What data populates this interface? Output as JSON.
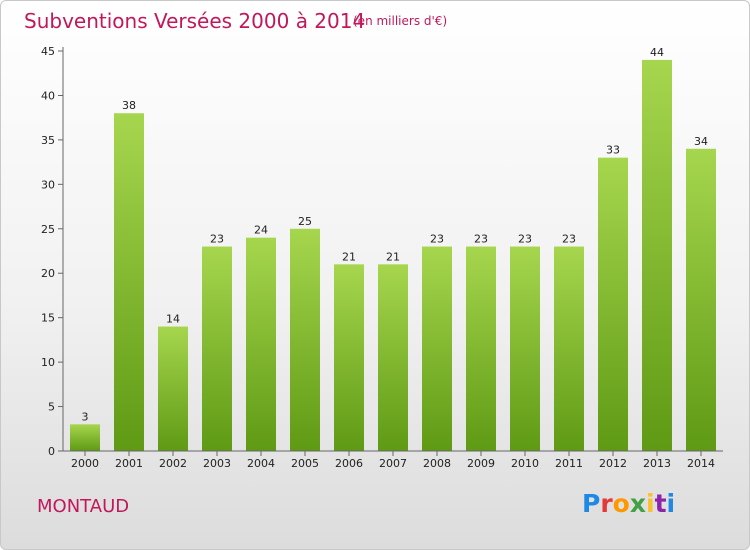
{
  "header": {
    "title": "Subventions Versées 2000 à 2014",
    "subtitle": "(en milliers d'€)"
  },
  "footer": {
    "commune": "MONTAUD",
    "logo": {
      "text": "Proxiti",
      "letter_colors": [
        "#1e88e5",
        "#e53935",
        "#ff9800",
        "#43a047",
        "#fbc02d",
        "#8e24aa",
        "#1e88e5"
      ]
    }
  },
  "chart_data": {
    "type": "bar",
    "title": "Subventions Versées 2000 à 2014",
    "subtitle": "(en milliers d'€)",
    "xlabel": "",
    "ylabel": "",
    "categories": [
      "2000",
      "2001",
      "2002",
      "2003",
      "2004",
      "2005",
      "2006",
      "2007",
      "2008",
      "2009",
      "2010",
      "2011",
      "2012",
      "2013",
      "2014"
    ],
    "values": [
      3,
      38,
      14,
      23,
      24,
      25,
      21,
      21,
      23,
      23,
      23,
      23,
      33,
      44,
      34
    ],
    "ylim": [
      0,
      45
    ],
    "yticks": [
      0,
      5,
      10,
      15,
      20,
      25,
      30,
      35,
      40,
      45
    ],
    "grid": false,
    "legend": "none",
    "colors": {
      "bar_top": "#a6d64e",
      "bar_bottom": "#5f9a14",
      "axis": "#666666"
    }
  }
}
